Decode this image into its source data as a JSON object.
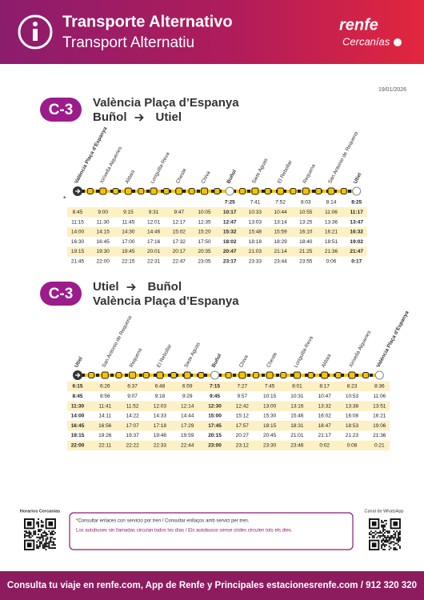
{
  "header": {
    "title": "Transporte Alternativo",
    "subtitle": "Transport Alternatiu",
    "brand": "renfe",
    "brand_sub": "Cercanías"
  },
  "date": "19/01/2026",
  "timetables": [
    {
      "line": "C-3",
      "heading": [
        [
          "València Plaça d’Espanya"
        ],
        [
          "Buñol",
          "Utiel"
        ]
      ],
      "stations": [
        "València Plaça d’Espanya",
        "Xirivella Alqueries",
        "Aldaia",
        "Loriguilla-Reva",
        "Cheste",
        "Chiva",
        "Buñol",
        "Siete Aguas",
        "El Rebollar",
        "Requena",
        "San Antonio de Requena",
        "Utiel"
      ],
      "bold_columns": [
        6,
        11
      ],
      "rows": [
        {
          "note": "*",
          "times": [
            null,
            null,
            null,
            null,
            null,
            null,
            "7:25",
            "7:41",
            "7:52",
            "8:03",
            "8:14",
            "8:25"
          ]
        },
        {
          "times": [
            "8:45",
            "9:00",
            "9:15",
            "9:31",
            "9:47",
            "10:05",
            "10:17",
            "10:33",
            "10:44",
            "10:55",
            "11:06",
            "11:17"
          ]
        },
        {
          "times": [
            "11:15",
            "11:30",
            "11:45",
            "12:01",
            "12:17",
            "12:35",
            "12:47",
            "13:03",
            "13:14",
            "13:25",
            "13:36",
            "13:47"
          ]
        },
        {
          "times": [
            "14:00",
            "14:15",
            "14:30",
            "14:46",
            "15:02",
            "15:20",
            "15:32",
            "15:48",
            "15:59",
            "16:10",
            "16:21",
            "16:32"
          ]
        },
        {
          "times": [
            "16:30",
            "16:45",
            "17:00",
            "17:16",
            "17:32",
            "17:50",
            "18:02",
            "18:18",
            "18:29",
            "18:40",
            "18:51",
            "19:02"
          ]
        },
        {
          "times": [
            "19:15",
            "19:30",
            "19:45",
            "20:01",
            "20:17",
            "20:35",
            "20:47",
            "21:03",
            "21:14",
            "21:25",
            "21:36",
            "21:47"
          ]
        },
        {
          "times": [
            "21:45",
            "22:00",
            "22:15",
            "22:31",
            "22:47",
            "23:05",
            "23:17",
            "23:33",
            "23:44",
            "23:55",
            "0:06",
            "0:17"
          ]
        }
      ]
    },
    {
      "line": "C-3",
      "heading": [
        [
          "Utiel",
          "Buñol"
        ],
        [
          "València Plaça d’Espanya"
        ]
      ],
      "stations": [
        "Utiel",
        "San Antonio de Requena",
        "Requena",
        "El Rebollar",
        "Siete Aguas",
        "Buñol",
        "Chiva",
        "Cheste",
        "Loriguilla-Reva",
        "Aldaia",
        "Xirivella Alqueries",
        "València Plaça d’Espanya"
      ],
      "bold_columns": [
        0,
        5
      ],
      "rows": [
        {
          "times": [
            "6:15",
            "6:26",
            "6:37",
            "6:48",
            "6:59",
            "7:15",
            "7:27",
            "7:45",
            "8:01",
            "8:17",
            "8:23",
            "8:36"
          ]
        },
        {
          "times": [
            "8:45",
            "8:56",
            "9:07",
            "9:18",
            "9:29",
            "9:45",
            "9:57",
            "10:15",
            "10:31",
            "10:47",
            "10:53",
            "11:06"
          ]
        },
        {
          "times": [
            "11:30",
            "11:41",
            "11:52",
            "12:03",
            "12:14",
            "12:30",
            "12:42",
            "13:00",
            "13:16",
            "13:32",
            "13:38",
            "13:51"
          ]
        },
        {
          "times": [
            "14:00",
            "14:11",
            "14:22",
            "14:33",
            "14:44",
            "15:00",
            "15:12",
            "15:30",
            "15:46",
            "16:02",
            "16:08",
            "16:21"
          ]
        },
        {
          "times": [
            "16:45",
            "16:56",
            "17:07",
            "17:18",
            "17:29",
            "17:45",
            "17:57",
            "18:15",
            "18:31",
            "18:47",
            "18:53",
            "19:06"
          ]
        },
        {
          "times": [
            "19:15",
            "19:26",
            "19:37",
            "19:48",
            "19:59",
            "20:15",
            "20:27",
            "20:45",
            "21:01",
            "21:17",
            "21:23",
            "21:36"
          ]
        },
        {
          "times": [
            "22:00",
            "22:11",
            "22:22",
            "22:33",
            "22:44",
            "23:00",
            "23:12",
            "23:30",
            "23:46",
            "0:02",
            "0:08",
            "0:21"
          ]
        }
      ]
    }
  ],
  "footer": {
    "left_label": "Horarios Cercanías",
    "notes": [
      "*Consultar enlaces con servicio por tren / Consultar enllaços amb servici per tren.",
      "Los autobuses sin llamadas circulan todos los días / Els autobusos sense crides circulen tots els dies."
    ],
    "right_label": "Canal de WhatsApp",
    "bar": "Consulta tu viaje en renfe.com, App de Renfe y Principales estacionesrenfe.com / 912 320 320"
  }
}
